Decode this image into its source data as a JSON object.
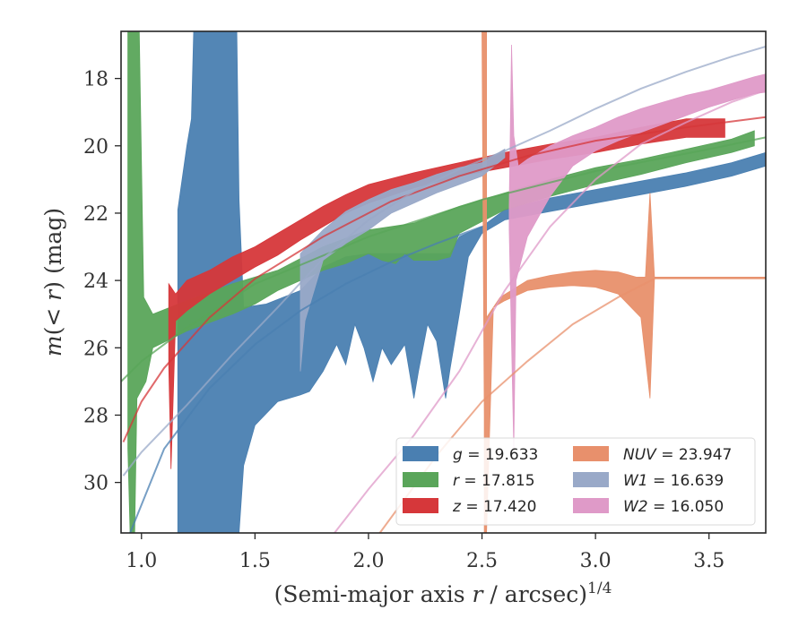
{
  "chart_data": {
    "type": "area",
    "xlabel": "(Semi-major axis r / arcsec)^1/4",
    "ylabel": "m(< r) (mag)",
    "xlim": [
      0.91,
      3.75
    ],
    "ylim": [
      31.5,
      16.6
    ],
    "y_inverted": true,
    "grid": false,
    "legend_position": "lower-right",
    "xticks": [
      "1.0",
      "1.5",
      "2.0",
      "2.5",
      "3.0",
      "3.5"
    ],
    "yticks": [
      "18",
      "20",
      "22",
      "24",
      "26",
      "28",
      "30"
    ],
    "series": [
      {
        "name": "g = 19.633",
        "legend_label": "g = 19.633",
        "color": "#4a7fb1",
        "band_upper": [
          [
            1.16,
            21.9
          ],
          [
            1.2,
            20.0
          ],
          [
            1.22,
            19.2
          ],
          [
            1.23,
            16.6
          ],
          [
            1.42,
            16.6
          ],
          [
            1.43,
            21.6
          ],
          [
            1.45,
            24.8
          ],
          [
            1.55,
            24.7
          ],
          [
            1.7,
            24.3
          ],
          [
            1.8,
            23.6
          ],
          [
            1.9,
            23.3
          ],
          [
            2.0,
            23.2
          ],
          [
            2.1,
            23.2
          ],
          [
            2.2,
            23.2
          ],
          [
            2.3,
            23.2
          ],
          [
            2.36,
            23.2
          ],
          [
            2.4,
            22.7
          ],
          [
            2.5,
            22.4
          ],
          [
            2.6,
            21.9
          ],
          [
            2.8,
            21.55
          ],
          [
            3.0,
            21.3
          ],
          [
            3.2,
            21.05
          ],
          [
            3.4,
            20.8
          ],
          [
            3.6,
            20.5
          ],
          [
            3.75,
            20.2
          ]
        ],
        "band_lower": [
          [
            3.75,
            20.6
          ],
          [
            3.6,
            20.9
          ],
          [
            3.4,
            21.2
          ],
          [
            3.2,
            21.45
          ],
          [
            3.0,
            21.7
          ],
          [
            2.8,
            21.95
          ],
          [
            2.6,
            22.2
          ],
          [
            2.5,
            22.6
          ],
          [
            2.44,
            23.3
          ],
          [
            2.4,
            25.0
          ],
          [
            2.36,
            26.6
          ],
          [
            2.34,
            27.5
          ],
          [
            2.3,
            25.8
          ],
          [
            2.26,
            25.3
          ],
          [
            2.22,
            26.7
          ],
          [
            2.2,
            27.5
          ],
          [
            2.16,
            25.9
          ],
          [
            2.1,
            26.5
          ],
          [
            2.06,
            26.0
          ],
          [
            2.02,
            27.0
          ],
          [
            1.98,
            26.0
          ],
          [
            1.94,
            25.3
          ],
          [
            1.9,
            26.5
          ],
          [
            1.86,
            25.9
          ],
          [
            1.8,
            26.7
          ],
          [
            1.74,
            27.3
          ],
          [
            1.7,
            27.4
          ],
          [
            1.6,
            27.6
          ],
          [
            1.5,
            28.3
          ],
          [
            1.45,
            29.5
          ],
          [
            1.43,
            31.5
          ],
          [
            1.16,
            31.5
          ]
        ],
        "profile": [
          [
            0.95,
            31.5
          ],
          [
            1.1,
            29.0
          ],
          [
            1.3,
            27.2
          ],
          [
            1.5,
            25.9
          ],
          [
            1.7,
            24.9
          ],
          [
            1.9,
            24.1
          ],
          [
            2.1,
            23.45
          ],
          [
            2.3,
            22.9
          ],
          [
            2.5,
            22.4
          ]
        ]
      },
      {
        "name": "r = 17.815",
        "legend_label": "r = 17.815",
        "color": "#5aa55a",
        "band_upper": [
          [
            0.94,
            16.6
          ],
          [
            0.99,
            16.6
          ],
          [
            1.01,
            24.5
          ],
          [
            1.05,
            25.0
          ],
          [
            1.2,
            24.6
          ],
          [
            1.4,
            24.1
          ],
          [
            1.6,
            23.7
          ],
          [
            1.8,
            23.0
          ],
          [
            2.0,
            22.5
          ],
          [
            2.2,
            22.3
          ],
          [
            2.4,
            21.8
          ],
          [
            2.6,
            21.4
          ],
          [
            2.8,
            21.0
          ],
          [
            3.0,
            20.65
          ],
          [
            3.2,
            20.4
          ],
          [
            3.4,
            20.1
          ],
          [
            3.6,
            19.8
          ],
          [
            3.7,
            19.55
          ]
        ],
        "band_lower": [
          [
            3.7,
            20.0
          ],
          [
            3.6,
            20.2
          ],
          [
            3.4,
            20.5
          ],
          [
            3.2,
            20.85
          ],
          [
            3.0,
            21.15
          ],
          [
            2.8,
            21.5
          ],
          [
            2.6,
            21.9
          ],
          [
            2.4,
            22.6
          ],
          [
            2.36,
            23.3
          ],
          [
            2.3,
            23.4
          ],
          [
            2.2,
            23.4
          ],
          [
            2.16,
            23.2
          ],
          [
            2.12,
            23.5
          ],
          [
            2.06,
            23.4
          ],
          [
            2.0,
            23.2
          ],
          [
            1.9,
            23.5
          ],
          [
            1.8,
            23.7
          ],
          [
            1.7,
            24.0
          ],
          [
            1.6,
            24.3
          ],
          [
            1.5,
            24.7
          ],
          [
            1.4,
            25.0
          ],
          [
            1.2,
            25.5
          ],
          [
            1.05,
            26.0
          ],
          [
            1.02,
            27.0
          ],
          [
            0.98,
            27.5
          ],
          [
            0.97,
            31.5
          ],
          [
            0.95,
            31.5
          ],
          [
            0.94,
            29.0
          ]
        ],
        "profile": [
          [
            0.91,
            27.0
          ],
          [
            1.0,
            26.4
          ],
          [
            1.2,
            25.4
          ],
          [
            1.5,
            24.1
          ],
          [
            2.0,
            22.7
          ],
          [
            2.5,
            21.6
          ],
          [
            3.0,
            20.75
          ],
          [
            3.5,
            20.1
          ],
          [
            3.75,
            19.75
          ]
        ]
      },
      {
        "name": "z = 17.420",
        "legend_label": "z = 17.420",
        "color": "#d6373a",
        "band_upper": [
          [
            1.12,
            24.1
          ],
          [
            1.15,
            24.4
          ],
          [
            1.2,
            24.0
          ],
          [
            1.3,
            23.7
          ],
          [
            1.4,
            23.3
          ],
          [
            1.5,
            23.0
          ],
          [
            1.6,
            22.6
          ],
          [
            1.7,
            22.2
          ],
          [
            1.8,
            21.8
          ],
          [
            1.9,
            21.45
          ],
          [
            2.0,
            21.15
          ],
          [
            2.2,
            20.8
          ],
          [
            2.4,
            20.5
          ],
          [
            2.6,
            20.2
          ],
          [
            2.8,
            19.95
          ],
          [
            3.0,
            19.75
          ],
          [
            3.2,
            19.45
          ],
          [
            3.4,
            19.2
          ],
          [
            3.57,
            19.2
          ]
        ],
        "band_lower": [
          [
            3.57,
            19.75
          ],
          [
            3.4,
            19.75
          ],
          [
            3.2,
            19.95
          ],
          [
            3.0,
            20.2
          ],
          [
            2.8,
            20.4
          ],
          [
            2.6,
            20.65
          ],
          [
            2.4,
            20.9
          ],
          [
            2.2,
            21.25
          ],
          [
            2.0,
            21.7
          ],
          [
            1.9,
            22.0
          ],
          [
            1.8,
            22.4
          ],
          [
            1.7,
            22.8
          ],
          [
            1.6,
            23.25
          ],
          [
            1.5,
            23.6
          ],
          [
            1.4,
            24.0
          ],
          [
            1.3,
            24.4
          ],
          [
            1.2,
            24.9
          ],
          [
            1.15,
            25.2
          ],
          [
            1.13,
            29.6
          ],
          [
            1.12,
            26.5
          ]
        ],
        "profile": [
          [
            0.92,
            28.8
          ],
          [
            1.0,
            27.6
          ],
          [
            1.1,
            26.6
          ],
          [
            1.3,
            25.1
          ],
          [
            1.5,
            23.95
          ],
          [
            1.8,
            22.7
          ],
          [
            2.1,
            21.65
          ],
          [
            2.4,
            20.9
          ],
          [
            2.7,
            20.3
          ],
          [
            3.0,
            19.85
          ],
          [
            3.4,
            19.45
          ],
          [
            3.75,
            19.15
          ]
        ]
      },
      {
        "name": "NUV = 23.947",
        "legend_label": "NUV = 23.947",
        "color": "#e8906c",
        "band_upper": [
          [
            2.51,
            16.6
          ],
          [
            2.52,
            16.6
          ],
          [
            2.52,
            25.1
          ],
          [
            2.58,
            24.5
          ],
          [
            2.7,
            24.0
          ],
          [
            2.8,
            23.85
          ],
          [
            2.9,
            23.75
          ],
          [
            3.0,
            23.7
          ],
          [
            3.1,
            23.75
          ],
          [
            3.18,
            23.9
          ],
          [
            3.22,
            23.9
          ],
          [
            3.24,
            21.4
          ],
          [
            3.26,
            23.9
          ],
          [
            3.75,
            23.9
          ]
        ],
        "band_lower": [
          [
            3.75,
            23.95
          ],
          [
            3.26,
            23.95
          ],
          [
            3.24,
            27.5
          ],
          [
            3.2,
            25.1
          ],
          [
            3.1,
            24.4
          ],
          [
            3.0,
            24.2
          ],
          [
            2.9,
            24.15
          ],
          [
            2.8,
            24.2
          ],
          [
            2.7,
            24.3
          ],
          [
            2.6,
            24.6
          ],
          [
            2.55,
            24.8
          ],
          [
            2.52,
            31.5
          ],
          [
            2.51,
            31.5
          ],
          [
            2.51,
            28.0
          ],
          [
            2.5,
            16.6
          ]
        ],
        "profile": [
          [
            2.05,
            31.5
          ],
          [
            2.3,
            29.2
          ],
          [
            2.5,
            27.6
          ],
          [
            2.7,
            26.4
          ],
          [
            2.9,
            25.3
          ],
          [
            3.1,
            24.5
          ],
          [
            3.26,
            23.95
          ]
        ]
      },
      {
        "name": "W1 = 16.639",
        "legend_label": "W1 = 16.639",
        "color": "#99a9c8",
        "band_upper": [
          [
            1.7,
            23.2
          ],
          [
            1.8,
            22.5
          ],
          [
            1.9,
            21.95
          ],
          [
            2.0,
            21.6
          ],
          [
            2.1,
            21.3
          ],
          [
            2.2,
            21.1
          ],
          [
            2.3,
            20.85
          ],
          [
            2.4,
            20.65
          ],
          [
            2.5,
            20.5
          ],
          [
            2.6,
            20.1
          ]
        ],
        "band_lower": [
          [
            2.6,
            20.35
          ],
          [
            2.5,
            20.9
          ],
          [
            2.4,
            21.15
          ],
          [
            2.3,
            21.4
          ],
          [
            2.2,
            21.7
          ],
          [
            2.1,
            22.0
          ],
          [
            2.0,
            22.5
          ],
          [
            1.9,
            22.9
          ],
          [
            1.8,
            23.4
          ],
          [
            1.72,
            25.2
          ],
          [
            1.7,
            26.7
          ]
        ],
        "profile": [
          [
            0.92,
            29.8
          ],
          [
            1.0,
            29.1
          ],
          [
            1.2,
            27.7
          ],
          [
            1.4,
            26.2
          ],
          [
            1.6,
            24.8
          ],
          [
            1.8,
            23.35
          ],
          [
            2.0,
            22.2
          ],
          [
            2.2,
            21.35
          ],
          [
            2.4,
            20.7
          ],
          [
            2.6,
            20.15
          ],
          [
            2.8,
            19.55
          ],
          [
            3.0,
            18.9
          ],
          [
            3.2,
            18.3
          ],
          [
            3.4,
            17.8
          ],
          [
            3.6,
            17.35
          ],
          [
            3.75,
            17.05
          ]
        ]
      },
      {
        "name": "W2 = 16.050",
        "legend_label": "W2 = 16.050",
        "color": "#df9ac8",
        "band_upper": [
          [
            2.62,
            21.8
          ],
          [
            2.63,
            17.0
          ],
          [
            2.64,
            19.7
          ],
          [
            2.66,
            20.6
          ],
          [
            2.7,
            20.4
          ],
          [
            2.8,
            20.0
          ],
          [
            2.9,
            19.7
          ],
          [
            3.0,
            19.45
          ],
          [
            3.1,
            19.15
          ],
          [
            3.2,
            18.9
          ],
          [
            3.3,
            18.7
          ],
          [
            3.4,
            18.5
          ],
          [
            3.5,
            18.35
          ],
          [
            3.6,
            18.15
          ],
          [
            3.7,
            17.95
          ],
          [
            3.76,
            17.85
          ]
        ],
        "band_lower": [
          [
            3.76,
            18.4
          ],
          [
            3.7,
            18.45
          ],
          [
            3.6,
            18.65
          ],
          [
            3.5,
            18.85
          ],
          [
            3.4,
            19.1
          ],
          [
            3.3,
            19.35
          ],
          [
            3.2,
            19.6
          ],
          [
            3.1,
            19.85
          ],
          [
            3.0,
            20.15
          ],
          [
            2.9,
            20.6
          ],
          [
            2.8,
            21.5
          ],
          [
            2.7,
            22.7
          ],
          [
            2.65,
            24.0
          ],
          [
            2.64,
            29.0
          ],
          [
            2.62,
            22.5
          ]
        ],
        "profile": [
          [
            1.85,
            31.5
          ],
          [
            2.0,
            30.2
          ],
          [
            2.2,
            28.6
          ],
          [
            2.4,
            26.7
          ],
          [
            2.6,
            24.3
          ],
          [
            2.8,
            22.4
          ],
          [
            3.0,
            21.0
          ],
          [
            3.2,
            19.95
          ],
          [
            3.4,
            19.3
          ],
          [
            3.6,
            18.7
          ],
          [
            3.75,
            18.35
          ]
        ]
      }
    ]
  },
  "legend": {
    "items": [
      {
        "label": "g = 19.633",
        "color": "#4a7fb1"
      },
      {
        "label": "r = 17.815",
        "color": "#5aa55a"
      },
      {
        "label": "z = 17.420",
        "color": "#d6373a"
      },
      {
        "label": "NUV = 23.947",
        "color": "#e8906c"
      },
      {
        "label": "W1 = 16.639",
        "color": "#99a9c8"
      },
      {
        "label": "W2 = 16.050",
        "color": "#df9ac8"
      }
    ]
  }
}
